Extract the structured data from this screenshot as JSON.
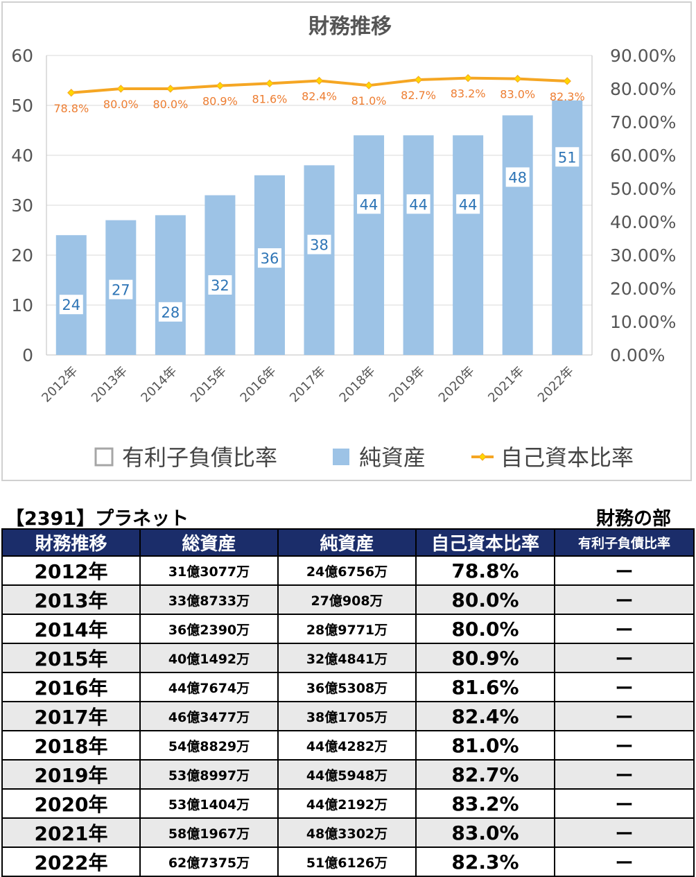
{
  "chart_data": {
    "type": "bar",
    "title": "財務推移",
    "categories": [
      "2012年",
      "2013年",
      "2014年",
      "2015年",
      "2016年",
      "2017年",
      "2018年",
      "2019年",
      "2020年",
      "2021年",
      "2022年"
    ],
    "series": [
      {
        "name": "純資産",
        "type": "bar",
        "axis": "left",
        "values": [
          24,
          27,
          28,
          32,
          36,
          38,
          44,
          44,
          44,
          48,
          51
        ],
        "color": "#9dc3e6"
      },
      {
        "name": "自己資本比率",
        "type": "line",
        "axis": "right",
        "values": [
          78.8,
          80.0,
          80.0,
          80.9,
          81.6,
          82.4,
          81.0,
          82.7,
          83.2,
          83.0,
          82.3
        ],
        "labels": [
          "78.8%",
          "80.0%",
          "80.0%",
          "80.9%",
          "81.6%",
          "82.4%",
          "81.0%",
          "82.7%",
          "83.2%",
          "83.0%",
          "82.3%"
        ],
        "color": "#f5a623"
      }
    ],
    "y_left": {
      "range": [
        0,
        60
      ],
      "ticks": [
        "0",
        "10",
        "20",
        "30",
        "40",
        "50",
        "60"
      ]
    },
    "y_right": {
      "range": [
        0,
        90
      ],
      "ticks": [
        "0.00%",
        "10.00%",
        "20.00%",
        "30.00%",
        "40.00%",
        "50.00%",
        "60.00%",
        "70.00%",
        "80.00%",
        "90.00%"
      ]
    },
    "legend": {
      "placement": "bottom",
      "items": [
        {
          "label": "有利子負債比率",
          "symbol": "square-empty"
        },
        {
          "label": "純資産",
          "symbol": "square-filled"
        },
        {
          "label": "自己資本比率",
          "symbol": "line-marker"
        }
      ]
    },
    "grid": true
  },
  "ticker_title": "【2391】プラネット",
  "section_title": "財務の部",
  "table": {
    "headers": [
      "財務推移",
      "総資産",
      "純資産",
      "自己資本比率",
      "有利子負債比率"
    ],
    "rows": [
      {
        "year": "2012年",
        "total_assets": "31億3077万",
        "net_assets": "24億6756万",
        "equity_ratio": "78.8%",
        "debt_ratio": "ー"
      },
      {
        "year": "2013年",
        "total_assets": "33億8733万",
        "net_assets": "27億908万",
        "equity_ratio": "80.0%",
        "debt_ratio": "ー"
      },
      {
        "year": "2014年",
        "total_assets": "36億2390万",
        "net_assets": "28億9771万",
        "equity_ratio": "80.0%",
        "debt_ratio": "ー"
      },
      {
        "year": "2015年",
        "total_assets": "40億1492万",
        "net_assets": "32億4841万",
        "equity_ratio": "80.9%",
        "debt_ratio": "ー"
      },
      {
        "year": "2016年",
        "total_assets": "44億7674万",
        "net_assets": "36億5308万",
        "equity_ratio": "81.6%",
        "debt_ratio": "ー"
      },
      {
        "year": "2017年",
        "total_assets": "46億3477万",
        "net_assets": "38億1705万",
        "equity_ratio": "82.4%",
        "debt_ratio": "ー"
      },
      {
        "year": "2018年",
        "total_assets": "54億8829万",
        "net_assets": "44億4282万",
        "equity_ratio": "81.0%",
        "debt_ratio": "ー"
      },
      {
        "year": "2019年",
        "total_assets": "53億8997万",
        "net_assets": "44億5948万",
        "equity_ratio": "82.7%",
        "debt_ratio": "ー"
      },
      {
        "year": "2020年",
        "total_assets": "53億1404万",
        "net_assets": "44億2192万",
        "equity_ratio": "83.2%",
        "debt_ratio": "ー"
      },
      {
        "year": "2021年",
        "total_assets": "58億1967万",
        "net_assets": "48億3302万",
        "equity_ratio": "83.0%",
        "debt_ratio": "ー"
      },
      {
        "year": "2022年",
        "total_assets": "62億7375万",
        "net_assets": "51億6126万",
        "equity_ratio": "82.3%",
        "debt_ratio": "ー"
      }
    ]
  }
}
